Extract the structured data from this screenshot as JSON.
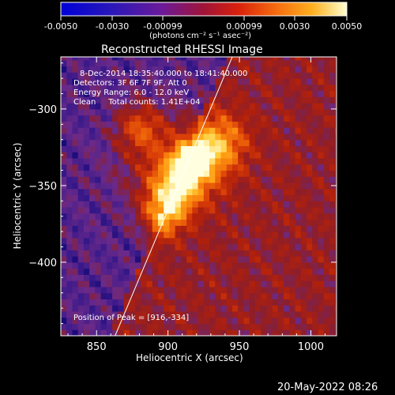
{
  "colorbar": {
    "ticks": [
      "-0.0050",
      "-0.0030",
      "-0.00099",
      "0.00099",
      "0.0030",
      "0.0050"
    ],
    "unit_label": "(photons cm⁻² s⁻¹ asec⁻²)",
    "range": [
      -0.005,
      0.005
    ]
  },
  "title": "Reconstructed RHESSI Image",
  "info": {
    "time": "8-Dec-2014 18:35:40.000 to 18:41:40.000",
    "detectors": "Detectors: 3F 6F 7F 9F, Att 0",
    "energy": "Energy Range: 6.0 - 12.0 keV",
    "clean": "Clean     Total counts: 1.41E+04",
    "peak": "Position of Peak = [916,-334]"
  },
  "footer_date": "20-May-2022 08:26",
  "chart_data": {
    "type": "heatmap",
    "title": "Reconstructed RHESSI Image",
    "xlabel": "Heliocentric X (arcsec)",
    "ylabel": "Heliocentric Y (arcsec)",
    "xlim": [
      825,
      1018
    ],
    "ylim": [
      -448,
      -266
    ],
    "x_ticks": [
      {
        "value": 850,
        "label": "850"
      },
      {
        "value": 900,
        "label": "900"
      },
      {
        "value": 950,
        "label": "950"
      },
      {
        "value": 1000,
        "label": "1000"
      }
    ],
    "y_ticks": [
      {
        "value": -300,
        "label": "−300"
      },
      {
        "value": -350,
        "label": "−350"
      },
      {
        "value": -400,
        "label": "−400"
      }
    ],
    "peak": [
      916,
      -334
    ],
    "sources": [
      {
        "x": 916,
        "y": -334,
        "sigma": 7,
        "amp": 1.0
      },
      {
        "x": 905,
        "y": -350,
        "sigma": 12,
        "amp": 0.7
      },
      {
        "x": 895,
        "y": -368,
        "sigma": 10,
        "amp": 0.62
      },
      {
        "x": 880,
        "y": -312,
        "sigma": 11,
        "amp": 0.45
      },
      {
        "x": 925,
        "y": -330,
        "sigma": 14,
        "amp": 0.5
      },
      {
        "x": 940,
        "y": -320,
        "sigma": 12,
        "amp": 0.35
      },
      {
        "x": 898,
        "y": -335,
        "sigma": 22,
        "amp": 0.35
      }
    ],
    "limb_line": {
      "from": [
        863,
        -448
      ],
      "to": [
        945,
        -266
      ]
    },
    "colormap": [
      "#00006e",
      "#3c1a8a",
      "#6a2a8a",
      "#8c1e2a",
      "#b0200c",
      "#d83c08",
      "#f06a0a",
      "#ff9a12",
      "#ffd040",
      "#ffffe0"
    ]
  }
}
